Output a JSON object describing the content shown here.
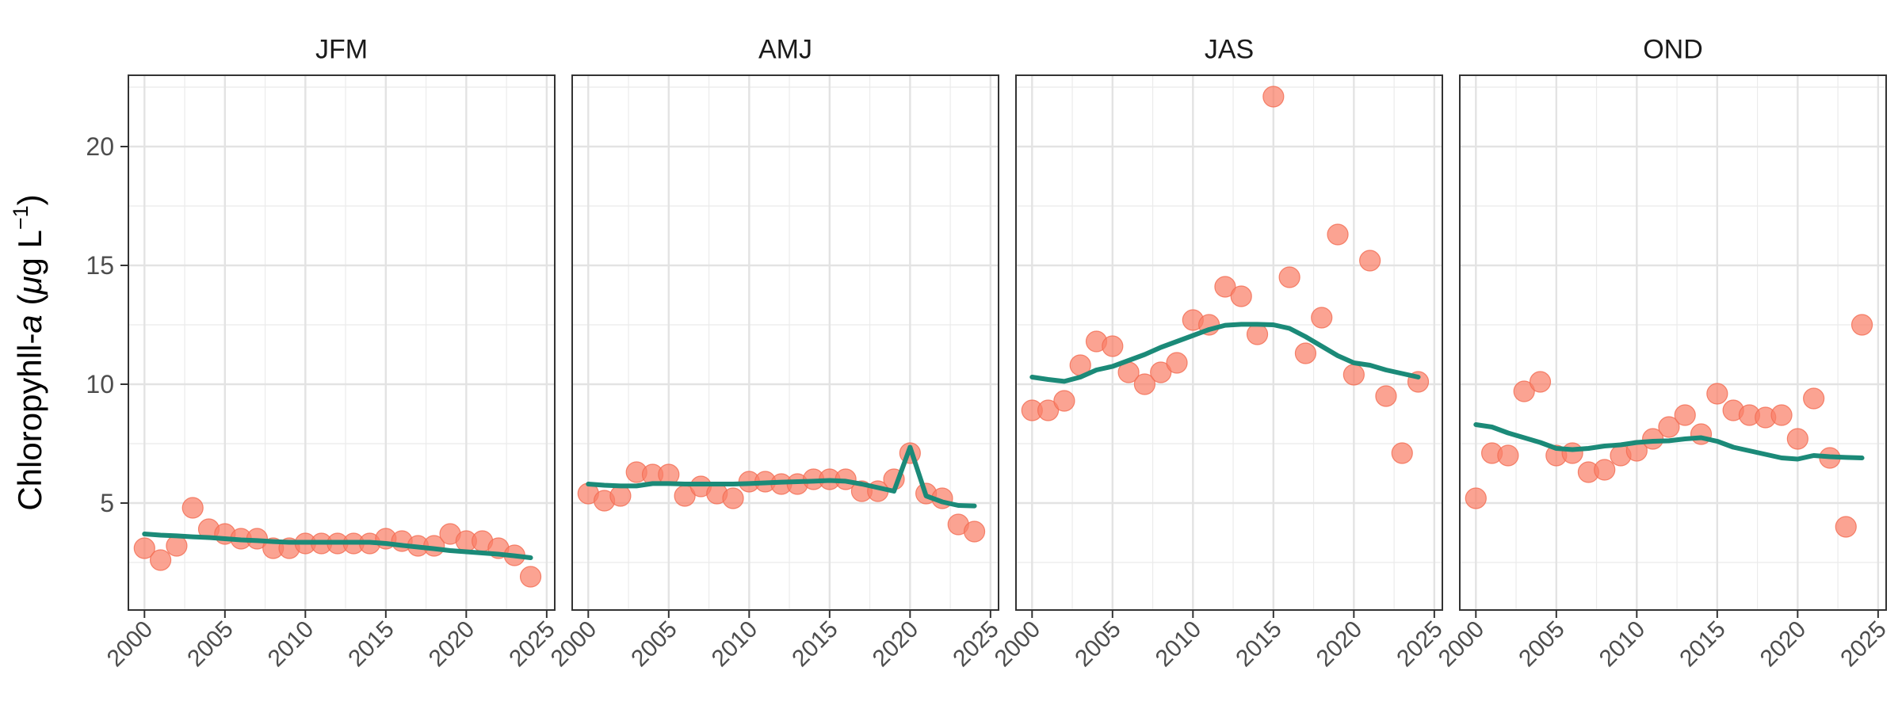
{
  "chart_data": {
    "type": "scatter",
    "ylabel": {
      "prefix": "Chloropyhll-",
      "italic": "a",
      "open": " (",
      "mu": "μ",
      "unit": "g L",
      "sup": "−1",
      "close": ")"
    },
    "xlim": [
      1999,
      2025.5
    ],
    "ylim": [
      0.5,
      23
    ],
    "xticks": [
      2000,
      2005,
      2010,
      2015,
      2020,
      2025
    ],
    "yticks": [
      5,
      10,
      15,
      20
    ],
    "grid": true,
    "colors": {
      "points": "#FA8068",
      "points_edge": "#F26A50",
      "trend": "#1B8A78"
    },
    "panels": [
      {
        "title": "JFM",
        "x": [
          2000,
          2001,
          2002,
          2003,
          2004,
          2005,
          2006,
          2007,
          2008,
          2009,
          2010,
          2011,
          2012,
          2013,
          2014,
          2015,
          2016,
          2017,
          2018,
          2019,
          2020,
          2021,
          2022,
          2023,
          2024
        ],
        "points": [
          3.1,
          2.6,
          3.2,
          4.8,
          3.9,
          3.7,
          3.5,
          3.5,
          3.1,
          3.1,
          3.3,
          3.3,
          3.3,
          3.3,
          3.3,
          3.5,
          3.4,
          3.2,
          3.2,
          3.7,
          3.4,
          3.4,
          3.1,
          2.8,
          1.9
        ],
        "trend": [
          3.7,
          3.65,
          3.62,
          3.58,
          3.55,
          3.5,
          3.45,
          3.42,
          3.38,
          3.35,
          3.35,
          3.35,
          3.35,
          3.35,
          3.35,
          3.3,
          3.22,
          3.15,
          3.08,
          3.0,
          2.95,
          2.9,
          2.85,
          2.78,
          2.7
        ]
      },
      {
        "title": "AMJ",
        "x": [
          2000,
          2001,
          2002,
          2003,
          2004,
          2005,
          2006,
          2007,
          2008,
          2009,
          2010,
          2011,
          2012,
          2013,
          2014,
          2015,
          2016,
          2017,
          2018,
          2019,
          2020,
          2021,
          2022,
          2023,
          2024
        ],
        "points": [
          5.4,
          5.1,
          5.3,
          6.3,
          6.2,
          6.2,
          5.3,
          5.7,
          5.4,
          5.2,
          5.9,
          5.9,
          5.8,
          5.8,
          6.0,
          6.0,
          6.0,
          5.5,
          5.5,
          6.0,
          7.1,
          5.4,
          5.2,
          4.1,
          3.8
        ],
        "trend": [
          5.8,
          5.75,
          5.72,
          5.72,
          5.82,
          5.82,
          5.8,
          5.8,
          5.8,
          5.8,
          5.82,
          5.85,
          5.88,
          5.9,
          5.92,
          5.95,
          5.92,
          5.8,
          5.65,
          5.5,
          7.35,
          5.3,
          5.05,
          4.9,
          4.88
        ]
      },
      {
        "title": "JAS",
        "x": [
          2000,
          2001,
          2002,
          2003,
          2004,
          2005,
          2006,
          2007,
          2008,
          2009,
          2010,
          2011,
          2012,
          2013,
          2014,
          2015,
          2016,
          2017,
          2018,
          2019,
          2020,
          2021,
          2022,
          2023,
          2024
        ],
        "points": [
          8.9,
          8.9,
          9.3,
          10.8,
          11.8,
          11.6,
          10.5,
          10.0,
          10.5,
          10.9,
          12.7,
          12.5,
          14.1,
          13.7,
          12.1,
          22.1,
          14.5,
          11.3,
          12.8,
          16.3,
          10.4,
          15.2,
          9.5,
          7.1,
          10.1
        ],
        "trend": [
          10.3,
          10.2,
          10.12,
          10.3,
          10.6,
          10.75,
          11.0,
          11.25,
          11.55,
          11.8,
          12.05,
          12.3,
          12.48,
          12.52,
          12.52,
          12.5,
          12.35,
          12.0,
          11.6,
          11.2,
          10.9,
          10.8,
          10.6,
          10.45,
          10.3
        ]
      },
      {
        "title": "OND",
        "x": [
          2000,
          2001,
          2002,
          2003,
          2004,
          2005,
          2006,
          2007,
          2008,
          2009,
          2010,
          2011,
          2012,
          2013,
          2014,
          2015,
          2016,
          2017,
          2018,
          2019,
          2020,
          2021,
          2022,
          2023,
          2024
        ],
        "points": [
          5.2,
          7.1,
          7.0,
          9.7,
          10.1,
          7.0,
          7.1,
          6.3,
          6.4,
          7.0,
          7.2,
          7.7,
          8.2,
          8.7,
          7.9,
          9.6,
          8.9,
          8.7,
          8.6,
          8.7,
          7.7,
          9.4,
          6.9,
          4.0,
          12.5
        ],
        "trend": [
          8.3,
          8.2,
          7.95,
          7.75,
          7.55,
          7.3,
          7.25,
          7.3,
          7.4,
          7.45,
          7.55,
          7.6,
          7.62,
          7.7,
          7.75,
          7.6,
          7.35,
          7.2,
          7.05,
          6.9,
          6.85,
          7.0,
          6.95,
          6.92,
          6.9
        ]
      }
    ]
  }
}
